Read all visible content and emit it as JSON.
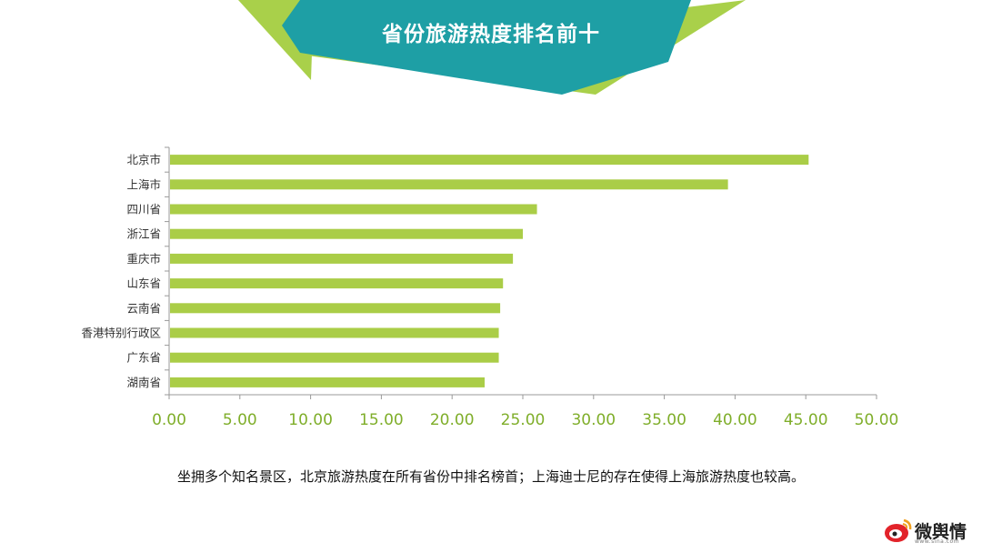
{
  "header": {
    "title": "省份旅游热度排名前十"
  },
  "caption": "坐拥多个知名景区，北京旅游热度在所有省份中排名榜首；上海迪士尼的存在使得上海旅游热度也较高。",
  "watermark": {
    "text": "微舆情",
    "url": "www.sina.com"
  },
  "colors": {
    "bar": "#aacd47",
    "axis_tick": "#7fae2a",
    "banner_teal": "#1e9fa5",
    "banner_green": "#a9d04a"
  },
  "chart_data": {
    "type": "bar",
    "orientation": "horizontal",
    "categories": [
      "北京市",
      "上海市",
      "四川省",
      "浙江省",
      "重庆市",
      "山东省",
      "云南省",
      "香港特别行政区",
      "广东省",
      "湖南省"
    ],
    "values": [
      45.2,
      39.5,
      26.0,
      25.0,
      24.3,
      23.6,
      23.4,
      23.3,
      23.3,
      22.3
    ],
    "xlim": [
      0,
      50
    ],
    "xticks": [
      "0.00",
      "5.00",
      "10.00",
      "15.00",
      "20.00",
      "25.00",
      "30.00",
      "35.00",
      "40.00",
      "45.00",
      "50.00"
    ],
    "title": "",
    "xlabel": "",
    "ylabel": "",
    "grid": false,
    "legend": "none"
  }
}
